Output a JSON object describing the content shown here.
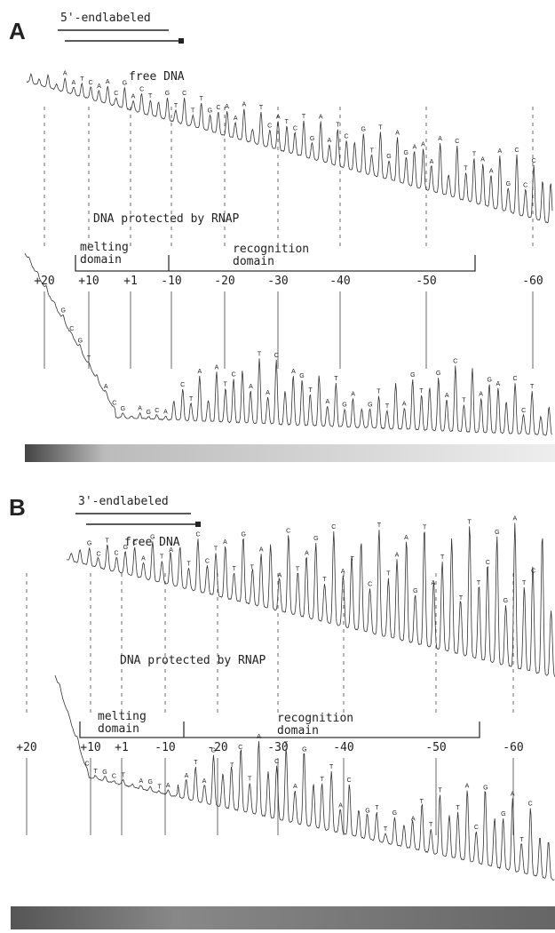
{
  "panels": [
    {
      "label": "A",
      "end_label": "5'-endlabeled",
      "free_label": "free DNA",
      "protected_label": "DNA protected by RNAP",
      "melting_label": [
        "melting",
        "domain"
      ],
      "recognition_label": [
        "recognition",
        "domain"
      ],
      "positions": [
        "+20",
        "+10",
        "+1",
        "-10",
        "-20",
        "-30",
        "-40",
        "-50",
        "-60"
      ],
      "free_bases": [
        "A",
        "A",
        "T",
        "C",
        "A",
        "A",
        "C",
        "G",
        "A",
        "C",
        "T",
        "G",
        "T",
        "C",
        "T",
        "T",
        "G",
        "C",
        "A",
        "A",
        "A",
        "T",
        "C",
        "A",
        "T",
        "C",
        "T",
        "G",
        "A",
        "A",
        "T",
        "C",
        "G",
        "T",
        "T",
        "G",
        "A",
        "G",
        "A",
        "A",
        "A",
        "A",
        "C",
        "T",
        "T",
        "A",
        "A",
        "A",
        "G",
        "C",
        "C",
        "C"
      ],
      "protected_bases": [
        "G",
        "C",
        "G",
        "T",
        "A",
        "C",
        "G",
        "A",
        "G",
        "C",
        "A",
        "C",
        "T",
        "A",
        "A",
        "T",
        "C",
        "A",
        "T",
        "A",
        "C",
        "A",
        "G",
        "T",
        "A",
        "T",
        "G",
        "A",
        "G",
        "T",
        "T",
        "A",
        "G",
        "T",
        "G",
        "A",
        "C",
        "T",
        "A",
        "G",
        "A",
        "C",
        "C",
        "T"
      ]
    },
    {
      "label": "B",
      "end_label": "3'-endlabeled",
      "free_label": "free DNA",
      "protected_label": "DNA protected by RNAP",
      "melting_label": [
        "melting",
        "domain"
      ],
      "recognition_label": [
        "recognition",
        "domain"
      ],
      "positions": [
        "+20",
        "+10",
        "+1",
        "-10",
        "-20",
        "-30",
        "-40",
        "-50",
        "-60"
      ],
      "free_bases": [
        "G",
        "C",
        "T",
        "C",
        "G",
        "C",
        "A",
        "G",
        "T",
        "A",
        "T",
        "C",
        "C",
        "T",
        "A",
        "T",
        "G",
        "T",
        "A",
        "A",
        "C",
        "T",
        "A",
        "G",
        "T",
        "C",
        "A",
        "T",
        "C",
        "T",
        "T",
        "A",
        "A",
        "G",
        "T",
        "A",
        "T",
        "T",
        "T",
        "T",
        "C",
        "G",
        "G",
        "A",
        "T",
        "C"
      ],
      "protected_bases": [
        "C",
        "T",
        "G",
        "C",
        "T",
        "A",
        "G",
        "T",
        "A",
        "A",
        "T",
        "A",
        "G",
        "T",
        "C",
        "T",
        "A",
        "C",
        "T",
        "A",
        "G",
        "T",
        "T",
        "A",
        "C",
        "G",
        "T",
        "T",
        "G",
        "A",
        "T",
        "T",
        "T",
        "T",
        "A",
        "C",
        "G",
        "G",
        "A",
        "T",
        "C"
      ]
    }
  ]
}
